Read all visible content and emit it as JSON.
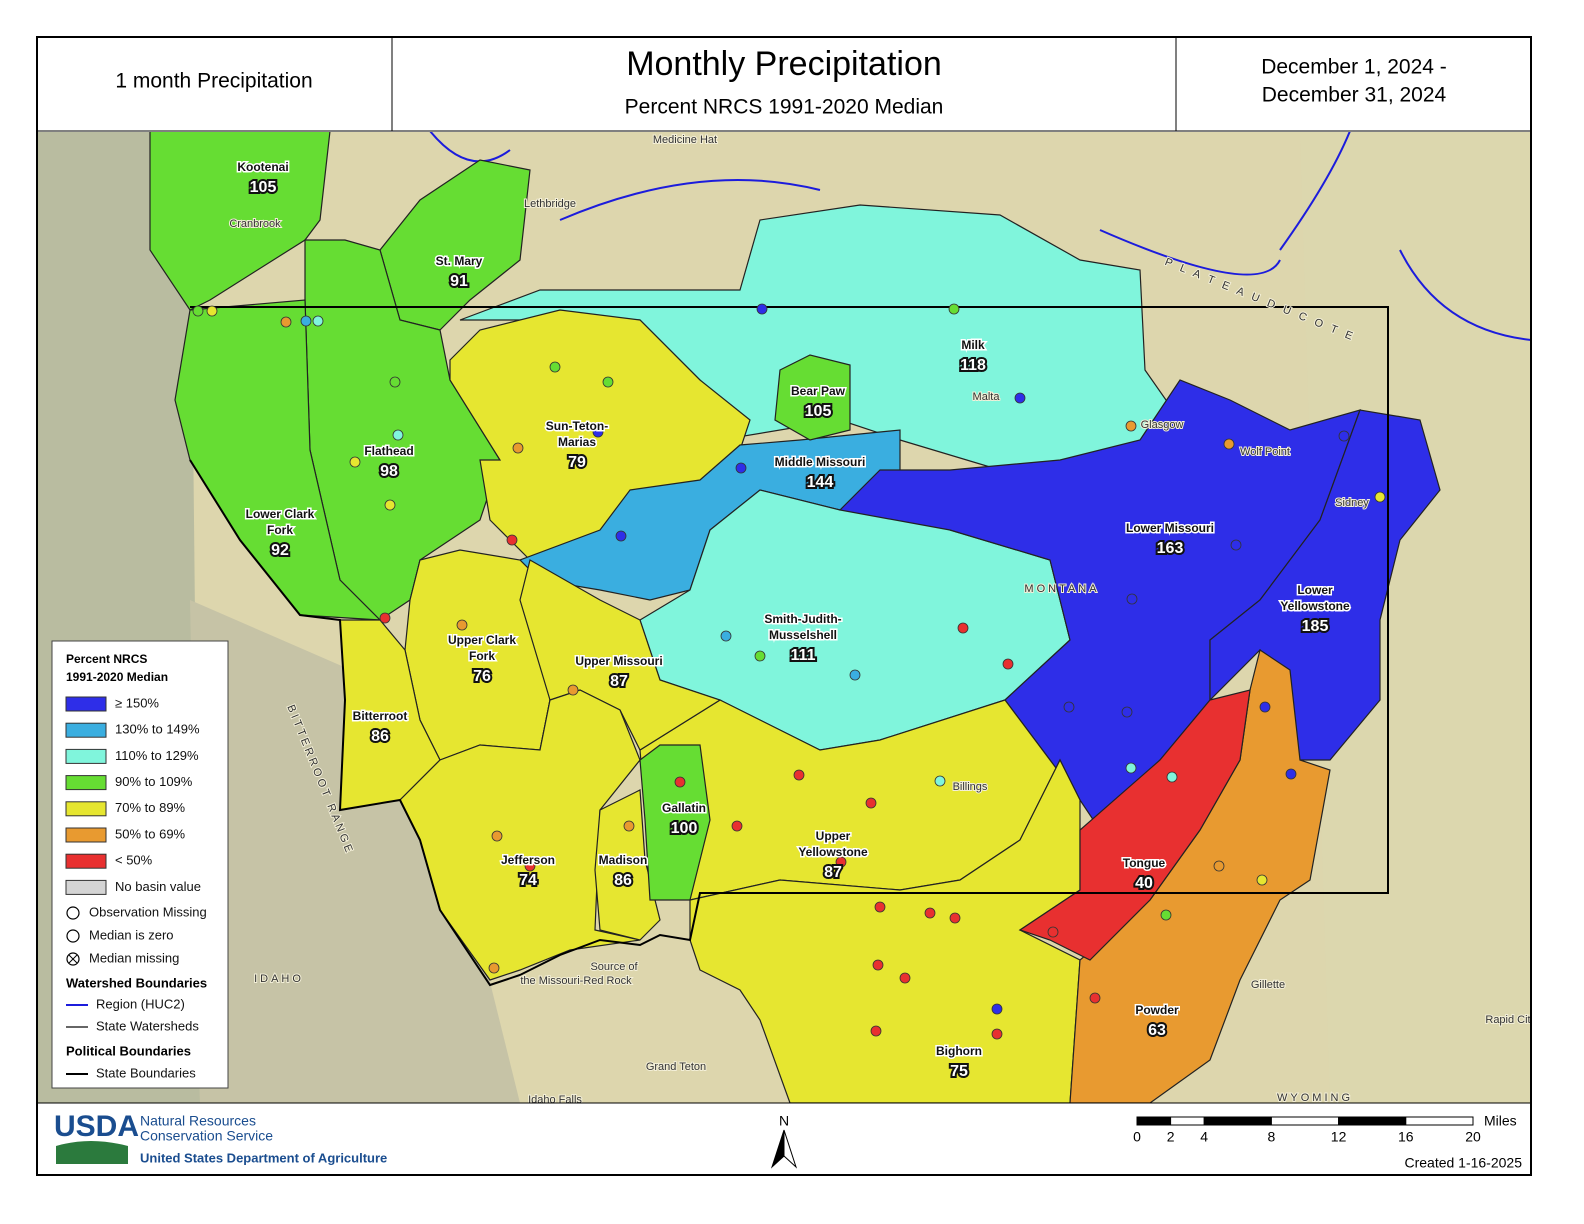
{
  "header": {
    "left": "1 month Precipitation",
    "title": "Monthly Precipitation",
    "subtitle": "Percent NRCS 1991-2020 Median",
    "date_range": [
      "December 1, 2024 -",
      "December 31, 2024"
    ]
  },
  "basins": [
    {
      "name": [
        "Kootenai"
      ],
      "value": 105,
      "color": "#66dd33"
    },
    {
      "name": [
        "St. Mary"
      ],
      "value": 91,
      "color": "#66dd33"
    },
    {
      "name": [
        "Flathead"
      ],
      "value": 98,
      "color": "#66dd33"
    },
    {
      "name": [
        "Lower Clark",
        "Fork"
      ],
      "value": 92,
      "color": "#66dd33"
    },
    {
      "name": [
        "Milk"
      ],
      "value": 118,
      "color": "#80f5dc"
    },
    {
      "name": [
        "Sun-Teton-",
        "Marias"
      ],
      "value": 79,
      "color": "#e6e630"
    },
    {
      "name": [
        "Bear Paw"
      ],
      "value": 105,
      "color": "#66dd33"
    },
    {
      "name": [
        "Middle Missouri"
      ],
      "value": 144,
      "color": "#3aaee0"
    },
    {
      "name": [
        "Smith-Judith-",
        "Musselshell"
      ],
      "value": 111,
      "color": "#80f5dc"
    },
    {
      "name": [
        "Lower Missouri"
      ],
      "value": 163,
      "color": "#2e2ee8"
    },
    {
      "name": [
        "Lower",
        "Yellowstone"
      ],
      "value": 185,
      "color": "#2e2ee8"
    },
    {
      "name": [
        "Upper Clark",
        "Fork"
      ],
      "value": 76,
      "color": "#e6e630"
    },
    {
      "name": [
        "Upper Missouri"
      ],
      "value": 87,
      "color": "#e6e630"
    },
    {
      "name": [
        "Bitterroot"
      ],
      "value": 86,
      "color": "#e6e630"
    },
    {
      "name": [
        "Upper",
        "Yellowstone"
      ],
      "value": 87,
      "color": "#e6e630"
    },
    {
      "name": [
        "Gallatin"
      ],
      "value": 100,
      "color": "#66dd33"
    },
    {
      "name": [
        "Jefferson"
      ],
      "value": 74,
      "color": "#e6e630"
    },
    {
      "name": [
        "Madison"
      ],
      "value": 86,
      "color": "#e6e630"
    },
    {
      "name": [
        "Tongue"
      ],
      "value": 40,
      "color": "#e83030"
    },
    {
      "name": [
        "Powder"
      ],
      "value": 63,
      "color": "#e89a30"
    },
    {
      "name": [
        "Bighorn"
      ],
      "value": 75,
      "color": "#e6e630"
    }
  ],
  "places": [
    "Medicine Hat",
    "Lethbridge",
    "Cranbrook",
    "Malta",
    "Glasgow",
    "Wolf Point",
    "Sidney",
    "Billings",
    "Gillette",
    "Rapid Cit",
    "Idaho Falls",
    "Grand Teton",
    "Source of",
    "the Missouri-Red Rock",
    "MONTANA",
    "IDAHO",
    "WYOMING",
    "P L A T E A U  D U  C O T E",
    "BITTERROOT RANGE"
  ],
  "legend": {
    "title": [
      "Percent NRCS",
      "1991-2020 Median"
    ],
    "classes": [
      {
        "label": "≥ 150%",
        "color": "#2e2ee8"
      },
      {
        "label": "130% to 149%",
        "color": "#3aaee0"
      },
      {
        "label": "110% to 129%",
        "color": "#80f5dc"
      },
      {
        "label": "90% to 109%",
        "color": "#66dd33"
      },
      {
        "label": "70% to 89%",
        "color": "#e6e630"
      },
      {
        "label": "50% to 69%",
        "color": "#e89a30"
      },
      {
        "label": "< 50%",
        "color": "#e83030"
      },
      {
        "label": "No basin value",
        "color": "#d4d4d4"
      }
    ],
    "symbols": [
      "Observation Missing",
      "Median is zero",
      "Median missing"
    ],
    "watershed_title": "Watershed Boundaries",
    "watershed": [
      "Region (HUC2)",
      "State Watersheds"
    ],
    "political_title": "Political Boundaries",
    "political": [
      "State Boundaries"
    ]
  },
  "footer": {
    "usda": "USDA",
    "agency": [
      "Natural Resources",
      "Conservation Service"
    ],
    "department": "United States Department of Agriculture",
    "north": "N",
    "scale_units": "Miles",
    "scale_ticks": [
      0,
      2,
      4,
      8,
      12,
      16,
      20
    ],
    "created": "Created 1-16-2025"
  }
}
